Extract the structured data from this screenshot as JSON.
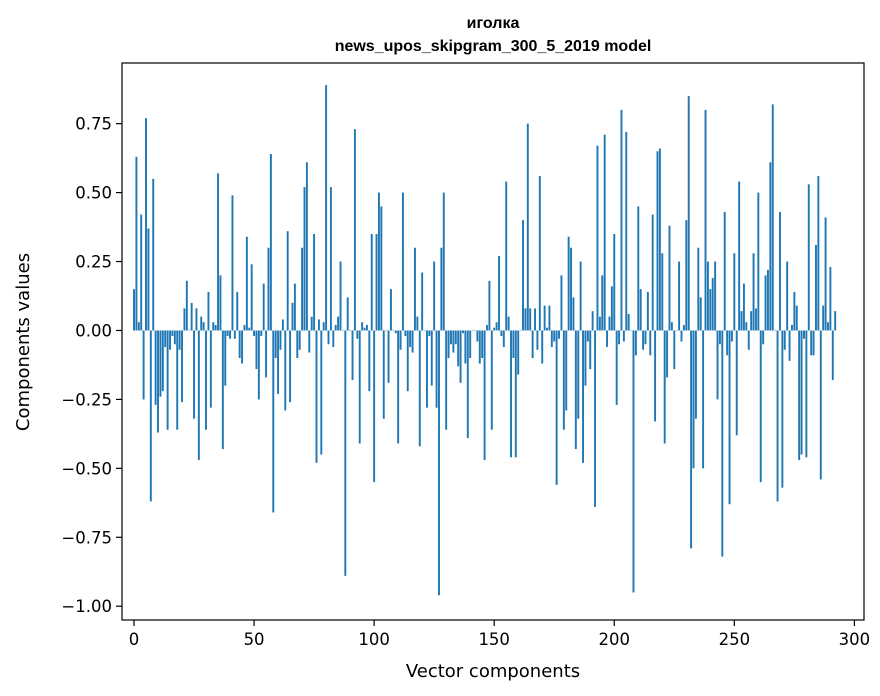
{
  "chart_data": {
    "type": "bar",
    "title_line1": "иголка",
    "title_line2": "news_upos_skipgram_300_5_2019 model",
    "xlabel": "Vector components",
    "ylabel": "Components values",
    "xlim": [
      -5,
      304
    ],
    "ylim": [
      -1.05,
      0.97
    ],
    "xticks": [
      0,
      50,
      100,
      150,
      200,
      250,
      300
    ],
    "xtick_labels": [
      "0",
      "50",
      "100",
      "150",
      "200",
      "250",
      "300"
    ],
    "yticks": [
      0.75,
      0.5,
      0.25,
      0.0,
      -0.25,
      -0.5,
      -0.75,
      -1.0
    ],
    "ytick_labels": [
      "0.75",
      "0.50",
      "0.25",
      "0.00",
      "−0.25",
      "−0.50",
      "−0.75",
      "−1.00"
    ],
    "bar_color": "#1f77b4",
    "values": [
      0.15,
      0.63,
      0.03,
      0.42,
      -0.25,
      0.77,
      0.37,
      -0.62,
      0.55,
      -0.27,
      -0.37,
      -0.24,
      -0.22,
      -0.06,
      -0.36,
      -0.07,
      -0.02,
      -0.05,
      -0.36,
      -0.07,
      -0.26,
      0.08,
      0.18,
      0.0,
      0.1,
      -0.32,
      0.08,
      -0.47,
      0.05,
      0.03,
      -0.36,
      0.14,
      -0.28,
      0.03,
      0.02,
      0.57,
      0.2,
      -0.43,
      -0.2,
      -0.02,
      -0.03,
      0.49,
      -0.03,
      0.14,
      -0.1,
      -0.12,
      0.02,
      0.34,
      0.01,
      0.24,
      -0.02,
      -0.14,
      -0.25,
      -0.02,
      0.17,
      -0.17,
      0.3,
      0.64,
      -0.66,
      -0.1,
      -0.23,
      -0.07,
      0.04,
      -0.29,
      0.36,
      -0.26,
      0.1,
      0.17,
      -0.1,
      -0.07,
      0.3,
      0.52,
      0.61,
      -0.08,
      0.05,
      0.35,
      -0.48,
      0.04,
      -0.45,
      0.03,
      0.89,
      -0.05,
      0.52,
      -0.06,
      0.02,
      0.05,
      0.25,
      0.0,
      -0.89,
      0.12,
      0.0,
      -0.18,
      0.73,
      -0.03,
      -0.41,
      0.03,
      0.01,
      0.02,
      -0.22,
      0.35,
      -0.55,
      0.35,
      0.5,
      0.45,
      -0.32,
      0.0,
      -0.19,
      0.15,
      0.0,
      -0.01,
      -0.41,
      -0.07,
      0.5,
      -0.02,
      -0.22,
      -0.06,
      -0.08,
      0.3,
      0.05,
      -0.42,
      0.21,
      0.0,
      -0.28,
      -0.02,
      -0.2,
      0.25,
      -0.28,
      -0.96,
      0.3,
      0.5,
      -0.36,
      -0.1,
      -0.05,
      -0.08,
      -0.05,
      -0.13,
      -0.19,
      -0.01,
      -0.12,
      -0.39,
      -0.1,
      0.0,
      0.0,
      -0.04,
      -0.12,
      -0.1,
      -0.47,
      0.02,
      0.18,
      -0.36,
      0.01,
      0.03,
      0.27,
      -0.02,
      -0.06,
      0.54,
      0.05,
      -0.46,
      -0.1,
      -0.46,
      -0.16,
      0.0,
      0.4,
      0.08,
      0.75,
      0.08,
      -0.1,
      0.08,
      -0.07,
      0.56,
      -0.12,
      0.09,
      0.01,
      0.09,
      -0.06,
      -0.04,
      -0.56,
      -0.03,
      0.2,
      -0.36,
      -0.29,
      0.34,
      0.3,
      0.12,
      -0.43,
      -0.32,
      0.25,
      -0.48,
      -0.2,
      -0.04,
      -0.14,
      0.07,
      -0.64,
      0.67,
      0.05,
      0.2,
      0.71,
      -0.06,
      0.05,
      0.16,
      0.35,
      -0.27,
      -0.05,
      0.8,
      -0.04,
      0.72,
      0.06,
      0.0,
      -0.95,
      -0.09,
      0.45,
      0.15,
      -0.07,
      -0.05,
      0.14,
      -0.09,
      0.42,
      -0.33,
      0.65,
      0.66,
      0.28,
      -0.41,
      -0.17,
      0.38,
      0.03,
      -0.14,
      0.0,
      0.25,
      -0.04,
      0.02,
      0.4,
      0.85,
      -0.79,
      -0.5,
      -0.32,
      0.3,
      0.12,
      -0.5,
      0.8,
      0.25,
      0.15,
      0.19,
      0.25,
      -0.25,
      -0.05,
      -0.82,
      0.43,
      -0.09,
      -0.63,
      -0.04,
      0.28,
      -0.38,
      0.54,
      0.07,
      0.17,
      0.03,
      -0.07,
      0.07,
      0.28,
      0.08,
      0.5,
      -0.55,
      -0.05,
      0.2,
      0.22,
      0.61,
      0.82,
      0.0,
      -0.62,
      0.43,
      -0.57,
      -0.07,
      0.25,
      -0.11,
      0.02,
      0.14,
      0.09,
      -0.47,
      -0.45,
      -0.03,
      -0.46,
      0.53,
      -0.09,
      -0.09,
      0.31,
      0.56,
      -0.54,
      0.09,
      0.41,
      0.03,
      0.23,
      -0.18,
      0.07
    ]
  }
}
